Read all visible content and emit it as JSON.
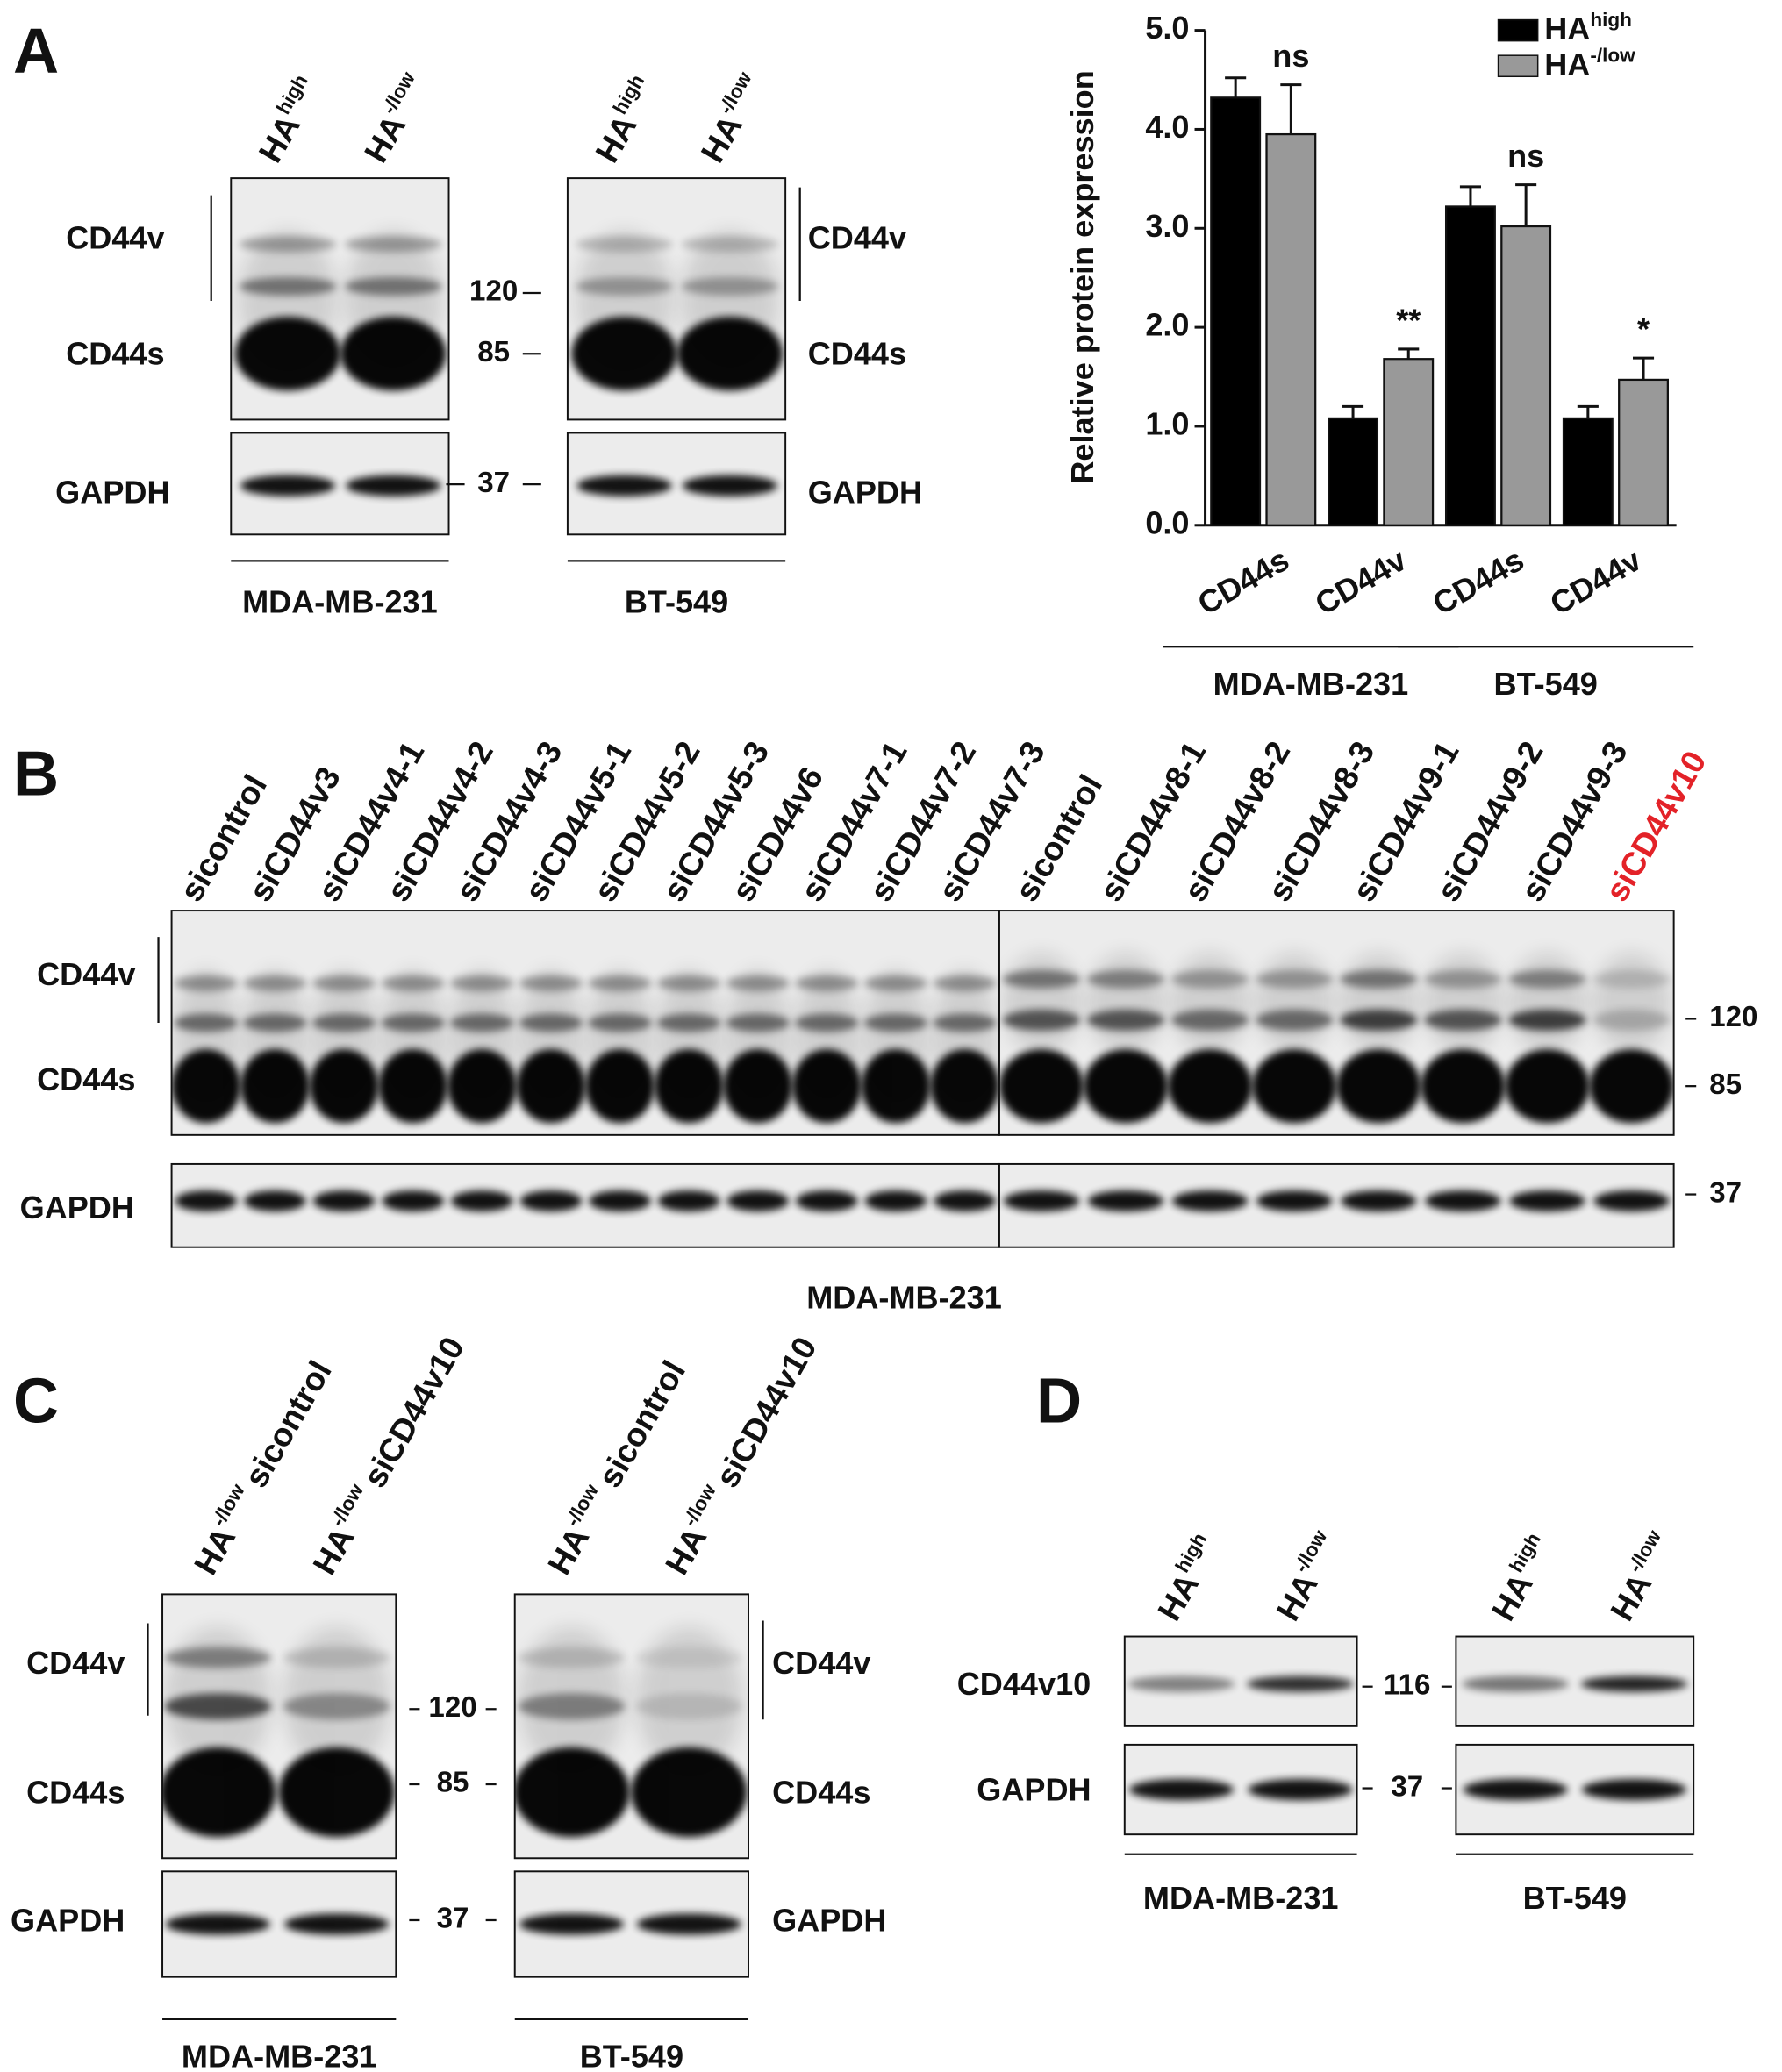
{
  "panel_a": {
    "letter": "A",
    "lanes": [
      {
        "base": "HA",
        "sup": "high"
      },
      {
        "base": "HA",
        "sup": "-/low"
      }
    ],
    "band_labels": {
      "cd44v": "CD44v",
      "cd44s": "CD44s",
      "gapdh": "GAPDH"
    },
    "markers": [
      120,
      85,
      37
    ],
    "cells": [
      "MDA-MB-231",
      "BT-549"
    ]
  },
  "chart_data": {
    "type": "bar",
    "ylabel": "Relative protein expression",
    "categories": [
      "CD44s",
      "CD44v",
      "CD44s",
      "CD44v"
    ],
    "groups": [
      "MDA-MB-231",
      "BT-549"
    ],
    "series": [
      {
        "name": "HA",
        "name_sup": "high",
        "color": "#000000",
        "values": [
          4.32,
          1.08,
          3.22,
          1.08
        ],
        "errors": [
          0.2,
          0.12,
          0.2,
          0.12
        ]
      },
      {
        "name": "HA",
        "name_sup": "-/low",
        "color": "#999999",
        "values": [
          3.95,
          1.68,
          3.02,
          1.47
        ],
        "errors": [
          0.5,
          0.1,
          0.42,
          0.22
        ]
      }
    ],
    "annotations": [
      "ns",
      "**",
      "ns",
      "*"
    ],
    "ylim": [
      0,
      5
    ],
    "yticks": [
      {
        "value": 0,
        "label": "0.0"
      },
      {
        "value": 1,
        "label": "1.0"
      },
      {
        "value": 2,
        "label": "2.0"
      },
      {
        "value": 3,
        "label": "3.0"
      },
      {
        "value": 4,
        "label": "4.0"
      },
      {
        "value": 5,
        "label": "5.0"
      }
    ]
  },
  "panel_b": {
    "letter": "B",
    "lanes_left": [
      {
        "label": "sicontrol",
        "color": "#111111"
      },
      {
        "label": "siCD44v3",
        "color": "#111111"
      },
      {
        "label": "siCD44v4-1",
        "color": "#111111"
      },
      {
        "label": "siCD44v4-2",
        "color": "#111111"
      },
      {
        "label": "siCD44v4-3",
        "color": "#111111"
      },
      {
        "label": "siCD44v5-1",
        "color": "#111111"
      },
      {
        "label": "siCD44v5-2",
        "color": "#111111"
      },
      {
        "label": "siCD44v5-3",
        "color": "#111111"
      },
      {
        "label": "siCD44v6",
        "color": "#111111"
      },
      {
        "label": "siCD44v7-1",
        "color": "#111111"
      },
      {
        "label": "siCD44v7-2",
        "color": "#111111"
      },
      {
        "label": "siCD44v7-3",
        "color": "#111111"
      }
    ],
    "lanes_right": [
      {
        "label": "sicontrol",
        "color": "#111111"
      },
      {
        "label": "siCD44v8-1",
        "color": "#111111"
      },
      {
        "label": "siCD44v8-2",
        "color": "#111111"
      },
      {
        "label": "siCD44v8-3",
        "color": "#111111"
      },
      {
        "label": "siCD44v9-1",
        "color": "#111111"
      },
      {
        "label": "siCD44v9-2",
        "color": "#111111"
      },
      {
        "label": "siCD44v9-3",
        "color": "#111111"
      },
      {
        "label": "siCD44v10",
        "color": "#e32228"
      }
    ],
    "band_labels": {
      "cd44v": "CD44v",
      "cd44s": "CD44s",
      "gapdh": "GAPDH"
    },
    "markers": [
      120,
      85,
      37
    ],
    "cell": "MDA-MB-231"
  },
  "panel_c": {
    "letter": "C",
    "lanes": [
      {
        "base": "HA",
        "sup": "-/low",
        "name": "sicontrol"
      },
      {
        "base": "HA",
        "sup": "-/low",
        "name": "siCD44v10"
      }
    ],
    "band_labels": {
      "cd44v": "CD44v",
      "cd44s": "CD44s",
      "gapdh": "GAPDH"
    },
    "markers": [
      120,
      85,
      37
    ],
    "cells": [
      "MDA-MB-231",
      "BT-549"
    ]
  },
  "panel_d": {
    "letter": "D",
    "lanes": [
      {
        "base": "HA",
        "sup": "high"
      },
      {
        "base": "HA",
        "sup": "-/low"
      }
    ],
    "band_labels": {
      "cd44v10": "CD44v10",
      "gapdh": "GAPDH"
    },
    "markers": [
      116,
      37
    ],
    "cells": [
      "MDA-MB-231",
      "BT-549"
    ]
  }
}
